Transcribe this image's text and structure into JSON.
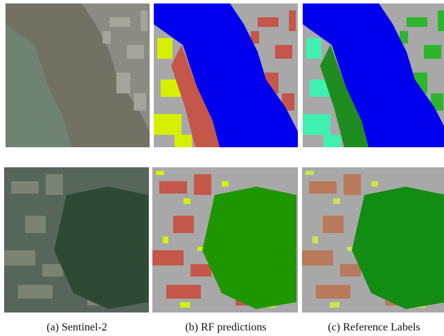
{
  "captions": [
    "(a)  Sentinel-2",
    "(b)  RF predictions",
    "(c)  Reference Labels"
  ]
}
